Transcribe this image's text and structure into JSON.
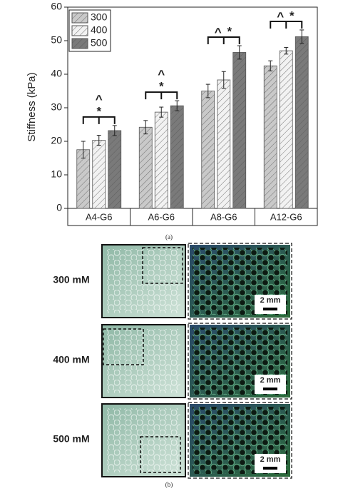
{
  "chart_data": {
    "type": "bar",
    "ylabel": "Stiffness (kPa)",
    "categories": [
      "A4-G6",
      "A6-G6",
      "A8-G6",
      "A12-G6"
    ],
    "series": [
      {
        "name": "300",
        "color": "#c9c9c9",
        "values": [
          17.5,
          24.2,
          35,
          42.5
        ],
        "errors": [
          2.5,
          2,
          2,
          1.5
        ]
      },
      {
        "name": "400",
        "color": "#f2f2f2",
        "values": [
          20.3,
          28.7,
          38.3,
          47
        ],
        "errors": [
          1.5,
          1.5,
          2.5,
          1
        ]
      },
      {
        "name": "500",
        "color": "#7a7a7a",
        "values": [
          23.2,
          30.6,
          46.5,
          51.2
        ],
        "errors": [
          1.5,
          1.5,
          2,
          2
        ]
      }
    ],
    "significance": [
      [
        "^",
        "*"
      ],
      [
        "^",
        "*"
      ],
      [
        "^",
        "*"
      ],
      [
        "^",
        "*"
      ]
    ],
    "ylim": [
      0,
      60
    ],
    "yticks": [
      0,
      10,
      20,
      30,
      40,
      50,
      60
    ],
    "legend": "upper-left",
    "hatch": true
  },
  "panel_labels": [
    "(a)",
    "(b)"
  ],
  "images": [
    {
      "label": "300 mM",
      "scale_bar": "2 mm"
    },
    {
      "label": "400 mM",
      "scale_bar": "2 mm"
    },
    {
      "label": "500 mM",
      "scale_bar": "2 mm"
    }
  ]
}
